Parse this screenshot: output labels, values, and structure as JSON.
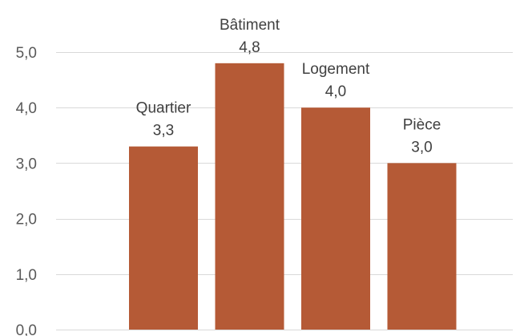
{
  "chart_data": {
    "type": "bar",
    "categories": [
      "Quartier",
      "Bâtiment",
      "Logement",
      "Pièce"
    ],
    "values": [
      3.3,
      4.8,
      4.0,
      3.0
    ],
    "value_labels": [
      "3,3",
      "4,8",
      "4,0",
      "3,0"
    ],
    "ylim": [
      0,
      5
    ],
    "yticks": [
      0,
      1,
      2,
      3,
      4,
      5
    ],
    "ytick_labels": [
      "0,0",
      "1,0",
      "2,0",
      "3,0",
      "4,0",
      "5,0"
    ],
    "grid": true,
    "legend": "none",
    "xlabel": "",
    "ylabel": "",
    "title": "",
    "colors": {
      "bar": "#b55a36",
      "grid": "#d9d9d9",
      "tick_text": "#595959",
      "label_text": "#404040"
    }
  }
}
